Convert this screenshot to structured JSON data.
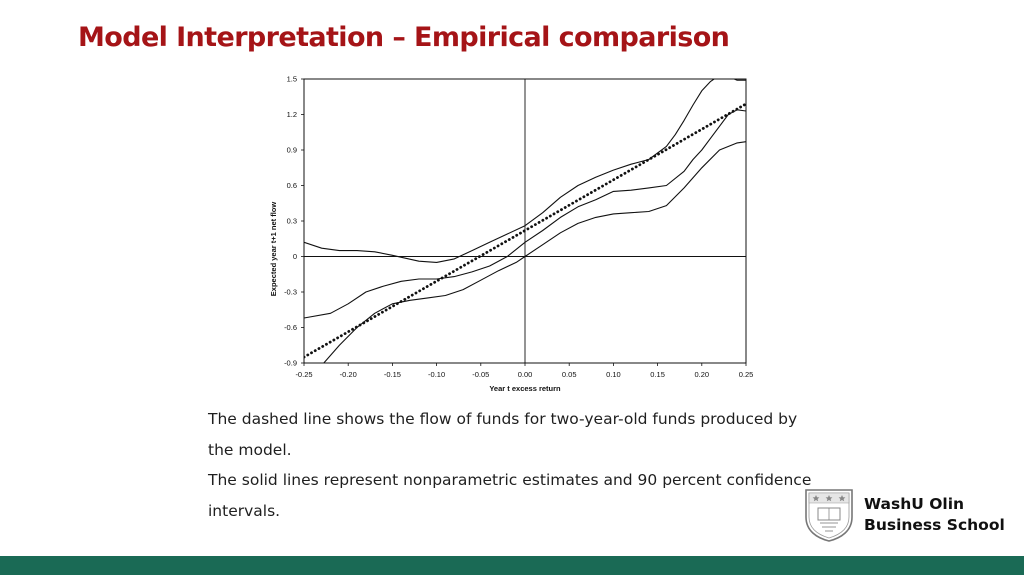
{
  "slide": {
    "title": "Model Interpretation – Empirical comparison"
  },
  "caption": {
    "line1": "The dashed line shows the flow of funds for two-year-old funds produced by",
    "line2": "the model.",
    "line3": "The solid lines represent nonparametric estimates and 90 percent confidence",
    "line4": "intervals."
  },
  "branding": {
    "name_line1": "WashU Olin",
    "name_line2": "Business School"
  },
  "colors": {
    "title": "#a51417",
    "footer_bar": "#1a6a55",
    "chart_ink": "#111111"
  },
  "chart_data": {
    "type": "line",
    "xlabel": "Year t excess return",
    "ylabel": "Expected year t+1 net flow",
    "xlim": [
      -0.25,
      0.25
    ],
    "ylim": [
      -0.9,
      1.5
    ],
    "xticks": [
      "-0.25",
      "-0.20",
      "-0.15",
      "-0.10",
      "-0.05",
      "0.00",
      "0.05",
      "0.10",
      "0.15",
      "0.20",
      "0.25"
    ],
    "yticks": [
      "-0.9",
      "-0.6",
      "-0.3",
      "0",
      "0.3",
      "0.6",
      "0.9",
      "1.2",
      "1.5"
    ],
    "grid": false,
    "reference_lines": [
      {
        "axis": "x",
        "value": 0
      },
      {
        "axis": "y",
        "value": 0
      }
    ],
    "series": [
      {
        "style": "dotted",
        "x": [
          -0.25,
          0.25
        ],
        "y": [
          -0.85,
          1.29
        ]
      },
      {
        "style": "solid",
        "x": [
          -0.25,
          -0.23,
          -0.21,
          -0.19,
          -0.17,
          -0.15,
          -0.12,
          -0.1,
          -0.08,
          -0.06,
          -0.04,
          -0.02,
          0.0,
          0.02,
          0.04,
          0.06,
          0.08,
          0.1,
          0.12,
          0.14,
          0.16,
          0.17,
          0.18,
          0.19,
          0.2,
          0.21,
          0.22,
          0.23,
          0.24,
          0.25
        ],
        "y": [
          0.12,
          0.07,
          0.05,
          0.05,
          0.04,
          0.01,
          -0.04,
          -0.05,
          -0.02,
          0.05,
          0.12,
          0.19,
          0.26,
          0.37,
          0.5,
          0.6,
          0.67,
          0.73,
          0.78,
          0.82,
          0.93,
          1.03,
          1.15,
          1.28,
          1.4,
          1.48,
          1.53,
          1.52,
          1.49,
          1.49
        ]
      },
      {
        "style": "solid",
        "x": [
          -0.25,
          -0.22,
          -0.2,
          -0.18,
          -0.16,
          -0.14,
          -0.12,
          -0.1,
          -0.08,
          -0.06,
          -0.04,
          -0.02,
          0.0,
          0.02,
          0.04,
          0.06,
          0.08,
          0.1,
          0.12,
          0.14,
          0.16,
          0.18,
          0.19,
          0.2,
          0.21,
          0.22,
          0.23,
          0.24,
          0.25
        ],
        "y": [
          -0.52,
          -0.48,
          -0.4,
          -0.3,
          -0.25,
          -0.21,
          -0.19,
          -0.19,
          -0.17,
          -0.13,
          -0.08,
          0.0,
          0.12,
          0.22,
          0.33,
          0.42,
          0.48,
          0.55,
          0.56,
          0.58,
          0.6,
          0.72,
          0.82,
          0.9,
          1.0,
          1.1,
          1.2,
          1.24,
          1.23
        ]
      },
      {
        "style": "solid",
        "x": [
          -0.23,
          -0.21,
          -0.19,
          -0.17,
          -0.15,
          -0.13,
          -0.11,
          -0.09,
          -0.07,
          -0.05,
          -0.03,
          -0.01,
          0.0,
          0.02,
          0.04,
          0.06,
          0.08,
          0.1,
          0.12,
          0.14,
          0.16,
          0.18,
          0.2,
          0.22,
          0.24,
          0.25
        ],
        "y": [
          -0.92,
          -0.75,
          -0.6,
          -0.48,
          -0.4,
          -0.37,
          -0.35,
          -0.33,
          -0.28,
          -0.2,
          -0.12,
          -0.05,
          0.0,
          0.1,
          0.2,
          0.28,
          0.33,
          0.36,
          0.37,
          0.38,
          0.43,
          0.58,
          0.75,
          0.9,
          0.96,
          0.97
        ]
      }
    ]
  }
}
